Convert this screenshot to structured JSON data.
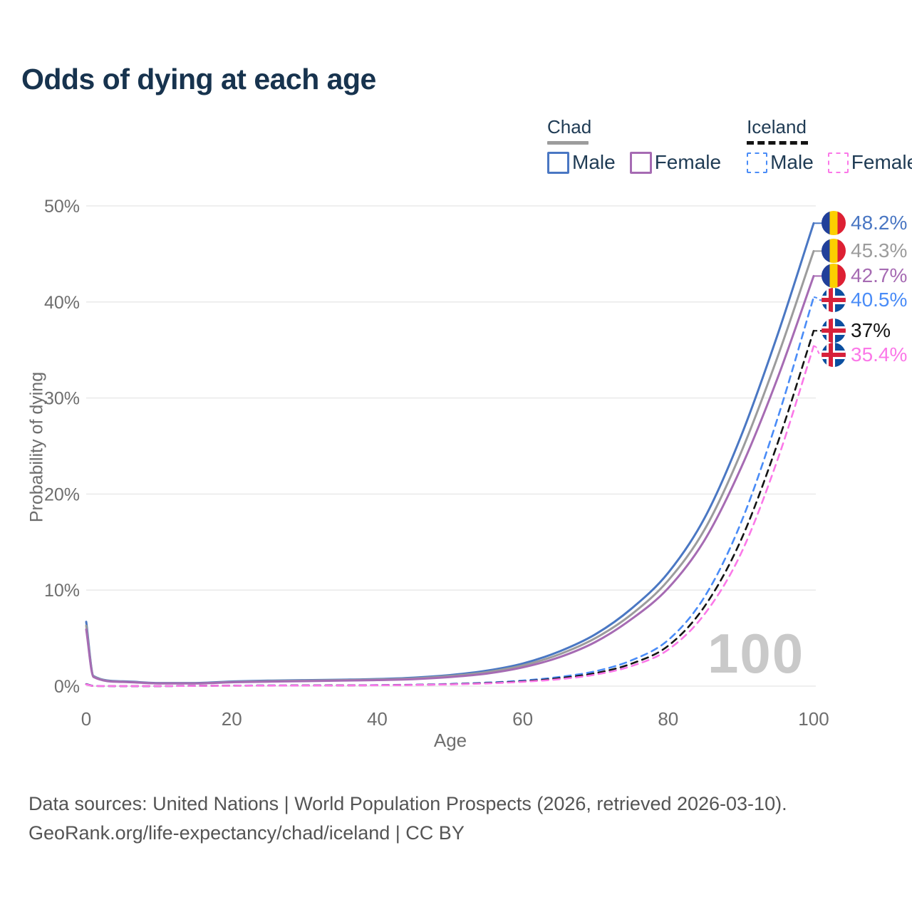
{
  "title": "Odds of dying at each age",
  "legend": {
    "groups": [
      {
        "label": "Chad",
        "style": "solid",
        "items": [
          {
            "label": "Male",
            "series": 0
          },
          {
            "label": "Female",
            "series": 2
          }
        ]
      },
      {
        "label": "Iceland",
        "style": "dashed",
        "items": [
          {
            "label": "Male",
            "series": 3
          },
          {
            "label": "Female",
            "series": 5
          }
        ]
      }
    ]
  },
  "watermark": "100",
  "footer": {
    "line1": "Data sources: United Nations | World Population Prospects (2026, retrieved 2026-03-10).",
    "line2": "GeoRank.org/life-expectancy/chad/iceland | CC BY"
  },
  "colors": {
    "title_text": "#17334e",
    "axis_text": "#6e6e6e",
    "gridline": "#eaeaea",
    "watermark": "#c9c9c9",
    "chad_underline": "#9c9c9c",
    "iceland_underline": "#141414"
  },
  "chart_data": {
    "type": "line",
    "title": "Odds of dying at each age",
    "xlabel": "Age",
    "ylabel": "Probability of dying",
    "xlim": [
      0,
      100
    ],
    "ylim": [
      0,
      50
    ],
    "grid": "horizontal",
    "legend_position": "top-right",
    "x_ticks": [
      {
        "v": 0,
        "t": "0"
      },
      {
        "v": 20,
        "t": "20"
      },
      {
        "v": 40,
        "t": "40"
      },
      {
        "v": 60,
        "t": "60"
      },
      {
        "v": 80,
        "t": "80"
      },
      {
        "v": 100,
        "t": "100"
      }
    ],
    "y_ticks": [
      {
        "v": 0,
        "t": "0%"
      },
      {
        "v": 10,
        "t": "10%"
      },
      {
        "v": 20,
        "t": "20%"
      },
      {
        "v": 30,
        "t": "30%"
      },
      {
        "v": 40,
        "t": "40%"
      },
      {
        "v": 50,
        "t": "50%"
      }
    ],
    "x": [
      0,
      1,
      5,
      10,
      15,
      20,
      25,
      30,
      35,
      40,
      45,
      50,
      55,
      60,
      65,
      70,
      75,
      80,
      85,
      90,
      95,
      100
    ],
    "series": [
      {
        "name": "Chad Male",
        "country": "Chad",
        "sex": "Male",
        "style": "solid",
        "color": "#4a77c3",
        "flag": "chad",
        "end_label": "48.2%",
        "values": [
          6.7,
          1.05,
          0.5,
          0.33,
          0.33,
          0.48,
          0.57,
          0.62,
          0.67,
          0.74,
          0.88,
          1.15,
          1.6,
          2.35,
          3.6,
          5.4,
          8.1,
          11.8,
          17.5,
          26.0,
          36.5,
          48.2
        ]
      },
      {
        "name": "Chad Both",
        "country": "Chad",
        "sex": "Both",
        "style": "solid",
        "color": "#9c9c9c",
        "flag": "chad",
        "end_label": "45.3%",
        "values": [
          6.3,
          1.0,
          0.47,
          0.3,
          0.3,
          0.44,
          0.52,
          0.57,
          0.62,
          0.68,
          0.8,
          1.05,
          1.45,
          2.15,
          3.3,
          5.0,
          7.5,
          11.0,
          16.3,
          24.3,
          34.2,
          45.3
        ]
      },
      {
        "name": "Chad Female",
        "country": "Chad",
        "sex": "Female",
        "style": "solid",
        "color": "#a66bb3",
        "flag": "chad",
        "end_label": "42.7%",
        "values": [
          5.9,
          0.95,
          0.44,
          0.28,
          0.28,
          0.4,
          0.47,
          0.52,
          0.57,
          0.63,
          0.73,
          0.95,
          1.3,
          1.95,
          3.0,
          4.6,
          7.0,
          10.2,
          15.2,
          22.7,
          32.0,
          42.7
        ]
      },
      {
        "name": "Iceland Male",
        "country": "Iceland",
        "sex": "Male",
        "style": "dashed",
        "color": "#4a8cf7",
        "flag": "iceland",
        "end_label": "40.5%",
        "values": [
          0.22,
          0.03,
          0.01,
          0.01,
          0.04,
          0.06,
          0.07,
          0.08,
          0.09,
          0.11,
          0.15,
          0.23,
          0.36,
          0.58,
          0.95,
          1.55,
          2.7,
          4.8,
          9.3,
          17.0,
          27.8,
          40.5
        ]
      },
      {
        "name": "Iceland Both",
        "country": "Iceland",
        "sex": "Both",
        "style": "dashed",
        "color": "#141414",
        "flag": "iceland",
        "end_label": "37%",
        "values": [
          0.2,
          0.025,
          0.01,
          0.01,
          0.035,
          0.05,
          0.06,
          0.07,
          0.08,
          0.1,
          0.13,
          0.2,
          0.32,
          0.5,
          0.82,
          1.35,
          2.35,
          4.2,
          8.3,
          15.2,
          25.2,
          37.0
        ]
      },
      {
        "name": "Iceland Female",
        "country": "Iceland",
        "sex": "Female",
        "style": "dashed",
        "color": "#fb78e8",
        "flag": "iceland",
        "end_label": "35.4%",
        "values": [
          0.18,
          0.02,
          0.01,
          0.01,
          0.03,
          0.045,
          0.055,
          0.06,
          0.07,
          0.09,
          0.12,
          0.18,
          0.28,
          0.45,
          0.72,
          1.2,
          2.1,
          3.8,
          7.5,
          13.8,
          23.5,
          35.4
        ]
      }
    ]
  }
}
